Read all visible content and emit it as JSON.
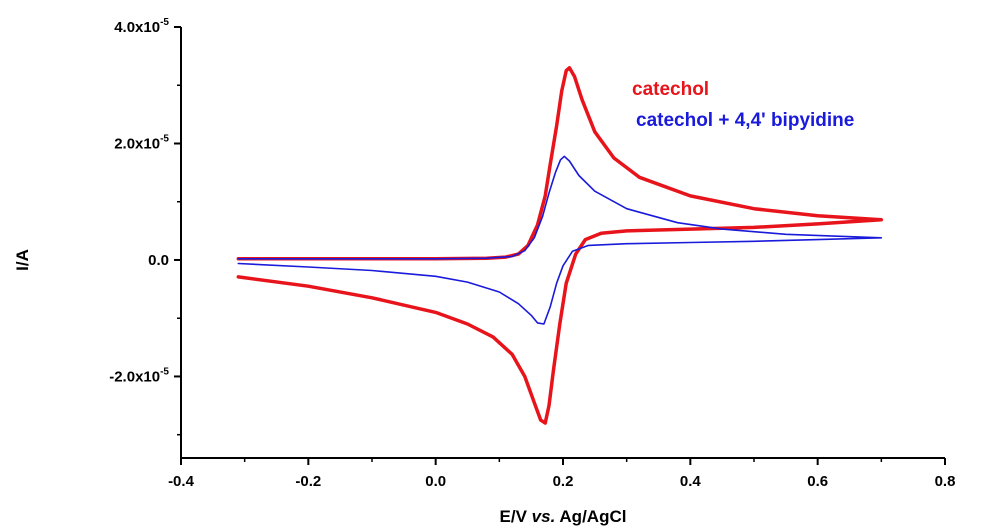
{
  "chart_data": {
    "type": "line",
    "title": "",
    "xlabel_parts": [
      {
        "text": "E/V ",
        "italic": false
      },
      {
        "text": "vs.",
        "italic": true
      },
      {
        "text": " Ag/AgCl",
        "italic": false
      }
    ],
    "ylabel": "I/A",
    "xlim": [
      -0.4,
      0.8
    ],
    "ylim": [
      -3.4e-05,
      4e-05
    ],
    "x_ticks": [
      {
        "value": -0.4,
        "label": "-0.4"
      },
      {
        "value": -0.2,
        "label": "-0.2"
      },
      {
        "value": 0.0,
        "label": "0.0"
      },
      {
        "value": 0.2,
        "label": "0.2"
      },
      {
        "value": 0.4,
        "label": "0.4"
      },
      {
        "value": 0.6,
        "label": "0.6"
      },
      {
        "value": 0.8,
        "label": "0.8"
      }
    ],
    "y_ticks": [
      {
        "value": 4e-05,
        "mantissa": "4.0x10",
        "exp": "-5"
      },
      {
        "value": 2e-05,
        "mantissa": "2.0x10",
        "exp": "-5"
      },
      {
        "value": 0.0,
        "mantissa": "0.0",
        "exp": ""
      },
      {
        "value": -2e-05,
        "mantissa": "-2.0x10",
        "exp": "-5"
      }
    ],
    "grid": false,
    "legend_position": "top-right",
    "series": [
      {
        "name": "catechol",
        "color": "#e8141b",
        "points": [
          [
            -0.31,
            2e-07
          ],
          [
            -0.2,
            2e-07
          ],
          [
            -0.1,
            2e-07
          ],
          [
            0.0,
            2e-07
          ],
          [
            0.08,
            3e-07
          ],
          [
            0.11,
            5e-07
          ],
          [
            0.13,
            1e-06
          ],
          [
            0.145,
            2.5e-06
          ],
          [
            0.16,
            6e-06
          ],
          [
            0.172,
            1.1e-05
          ],
          [
            0.18,
            1.65e-05
          ],
          [
            0.19,
            2.3e-05
          ],
          [
            0.198,
            2.9e-05
          ],
          [
            0.205,
            3.25e-05
          ],
          [
            0.21,
            3.3e-05
          ],
          [
            0.218,
            3.15e-05
          ],
          [
            0.23,
            2.75e-05
          ],
          [
            0.25,
            2.2e-05
          ],
          [
            0.28,
            1.75e-05
          ],
          [
            0.32,
            1.42e-05
          ],
          [
            0.4,
            1.1e-05
          ],
          [
            0.5,
            8.8e-06
          ],
          [
            0.6,
            7.6e-06
          ],
          [
            0.7,
            6.9e-06
          ],
          [
            0.6,
            6.2e-06
          ],
          [
            0.5,
            5.6e-06
          ],
          [
            0.4,
            5.3e-06
          ],
          [
            0.3,
            5e-06
          ],
          [
            0.26,
            4.6e-06
          ],
          [
            0.235,
            3.5e-06
          ],
          [
            0.22,
            1e-06
          ],
          [
            0.205,
            -4e-06
          ],
          [
            0.195,
            -1.1e-05
          ],
          [
            0.185,
            -1.9e-05
          ],
          [
            0.178,
            -2.5e-05
          ],
          [
            0.172,
            -2.8e-05
          ],
          [
            0.165,
            -2.75e-05
          ],
          [
            0.155,
            -2.45e-05
          ],
          [
            0.14,
            -2e-05
          ],
          [
            0.12,
            -1.62e-05
          ],
          [
            0.09,
            -1.32e-05
          ],
          [
            0.05,
            -1.1e-05
          ],
          [
            0.0,
            -9e-06
          ],
          [
            -0.1,
            -6.5e-06
          ],
          [
            -0.2,
            -4.5e-06
          ],
          [
            -0.31,
            -2.9e-06
          ]
        ]
      },
      {
        "name": "catechol + 4,4' bipyidine",
        "color": "#1a1adb",
        "points": [
          [
            -0.31,
            2e-07
          ],
          [
            -0.2,
            2e-07
          ],
          [
            -0.1,
            2e-07
          ],
          [
            0.0,
            2e-07
          ],
          [
            0.08,
            3e-07
          ],
          [
            0.12,
            6e-07
          ],
          [
            0.14,
            1.6e-06
          ],
          [
            0.155,
            3.8e-06
          ],
          [
            0.168,
            7.5e-06
          ],
          [
            0.178,
            1.15e-05
          ],
          [
            0.188,
            1.5e-05
          ],
          [
            0.196,
            1.72e-05
          ],
          [
            0.202,
            1.78e-05
          ],
          [
            0.21,
            1.7e-05
          ],
          [
            0.225,
            1.45e-05
          ],
          [
            0.25,
            1.18e-05
          ],
          [
            0.3,
            8.8e-06
          ],
          [
            0.38,
            6.4e-06
          ],
          [
            0.45,
            5.3e-06
          ],
          [
            0.55,
            4.4e-06
          ],
          [
            0.7,
            3.8e-06
          ],
          [
            0.6,
            3.5e-06
          ],
          [
            0.5,
            3.2e-06
          ],
          [
            0.4,
            3e-06
          ],
          [
            0.3,
            2.8e-06
          ],
          [
            0.24,
            2.5e-06
          ],
          [
            0.215,
            1.5e-06
          ],
          [
            0.2,
            -1e-06
          ],
          [
            0.19,
            -4e-06
          ],
          [
            0.18,
            -8e-06
          ],
          [
            0.17,
            -1.1e-05
          ],
          [
            0.16,
            -1.08e-05
          ],
          [
            0.15,
            -9.5e-06
          ],
          [
            0.13,
            -7.5e-06
          ],
          [
            0.1,
            -5.5e-06
          ],
          [
            0.05,
            -3.8e-06
          ],
          [
            0.0,
            -2.8e-06
          ],
          [
            -0.1,
            -1.8e-06
          ],
          [
            -0.2,
            -1.2e-06
          ],
          [
            -0.31,
            -6e-07
          ]
        ]
      }
    ]
  }
}
